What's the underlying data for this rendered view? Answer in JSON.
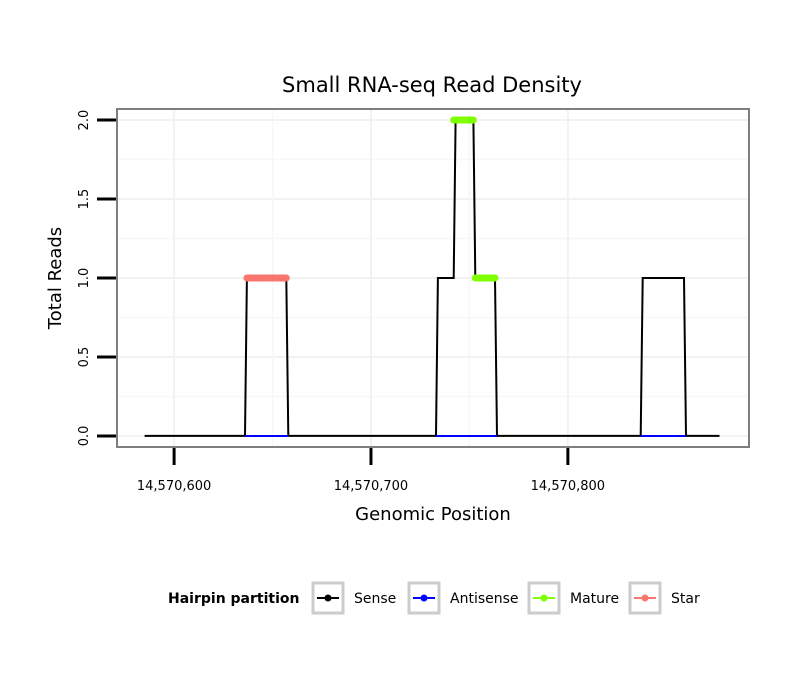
{
  "chart_data": {
    "type": "line",
    "title": "Small RNA-seq Read Density",
    "xlabel": "Genomic Position",
    "ylabel": "Total Reads",
    "xlim": [
      14570571,
      14570892
    ],
    "ylim": [
      -0.07,
      2.07
    ],
    "x_ticks": [
      14570600,
      14570700,
      14570800
    ],
    "x_tick_labels": [
      "14,570,600",
      "14,570,700",
      "14,570,800"
    ],
    "y_ticks": [
      0.0,
      0.5,
      1.0,
      1.5,
      2.0
    ],
    "y_tick_labels": [
      "0.0",
      "0.5",
      "1.0",
      "1.5",
      "2.0"
    ],
    "grid": true,
    "legend_position": "bottom",
    "legend_title": "Hairpin partition",
    "series": [
      {
        "name": "Sense",
        "color": "#000000",
        "style": "line",
        "x": [
          14570585,
          14570636,
          14570637,
          14570657,
          14570658,
          14570733,
          14570734,
          14570742,
          14570743,
          14570752,
          14570753,
          14570763,
          14570764,
          14570837,
          14570838,
          14570859,
          14570860,
          14570877
        ],
        "y": [
          0,
          0,
          1,
          1,
          0,
          0,
          1,
          1,
          2,
          2,
          1,
          1,
          0,
          0,
          1,
          1,
          0,
          0
        ]
      },
      {
        "name": "Antisense",
        "color": "#0000ff",
        "style": "line",
        "x": [
          14570636,
          14570658,
          14570733,
          14570764,
          14570837,
          14570860
        ],
        "y": [
          0,
          0,
          0,
          0,
          0,
          0
        ],
        "segments": [
          [
            0,
            1
          ],
          [
            2,
            3
          ],
          [
            4,
            5
          ]
        ]
      },
      {
        "name": "Mature",
        "color": "#7fff00",
        "style": "thick",
        "x": [
          14570742,
          14570752,
          14570753,
          14570763
        ],
        "y": [
          2,
          2,
          1,
          1
        ],
        "segments": [
          [
            0,
            1
          ],
          [
            2,
            3
          ]
        ]
      },
      {
        "name": "Star",
        "color": "#f8766d",
        "style": "thick",
        "x": [
          14570637,
          14570657
        ],
        "y": [
          1,
          1
        ],
        "segments": [
          [
            0,
            1
          ]
        ]
      }
    ]
  }
}
